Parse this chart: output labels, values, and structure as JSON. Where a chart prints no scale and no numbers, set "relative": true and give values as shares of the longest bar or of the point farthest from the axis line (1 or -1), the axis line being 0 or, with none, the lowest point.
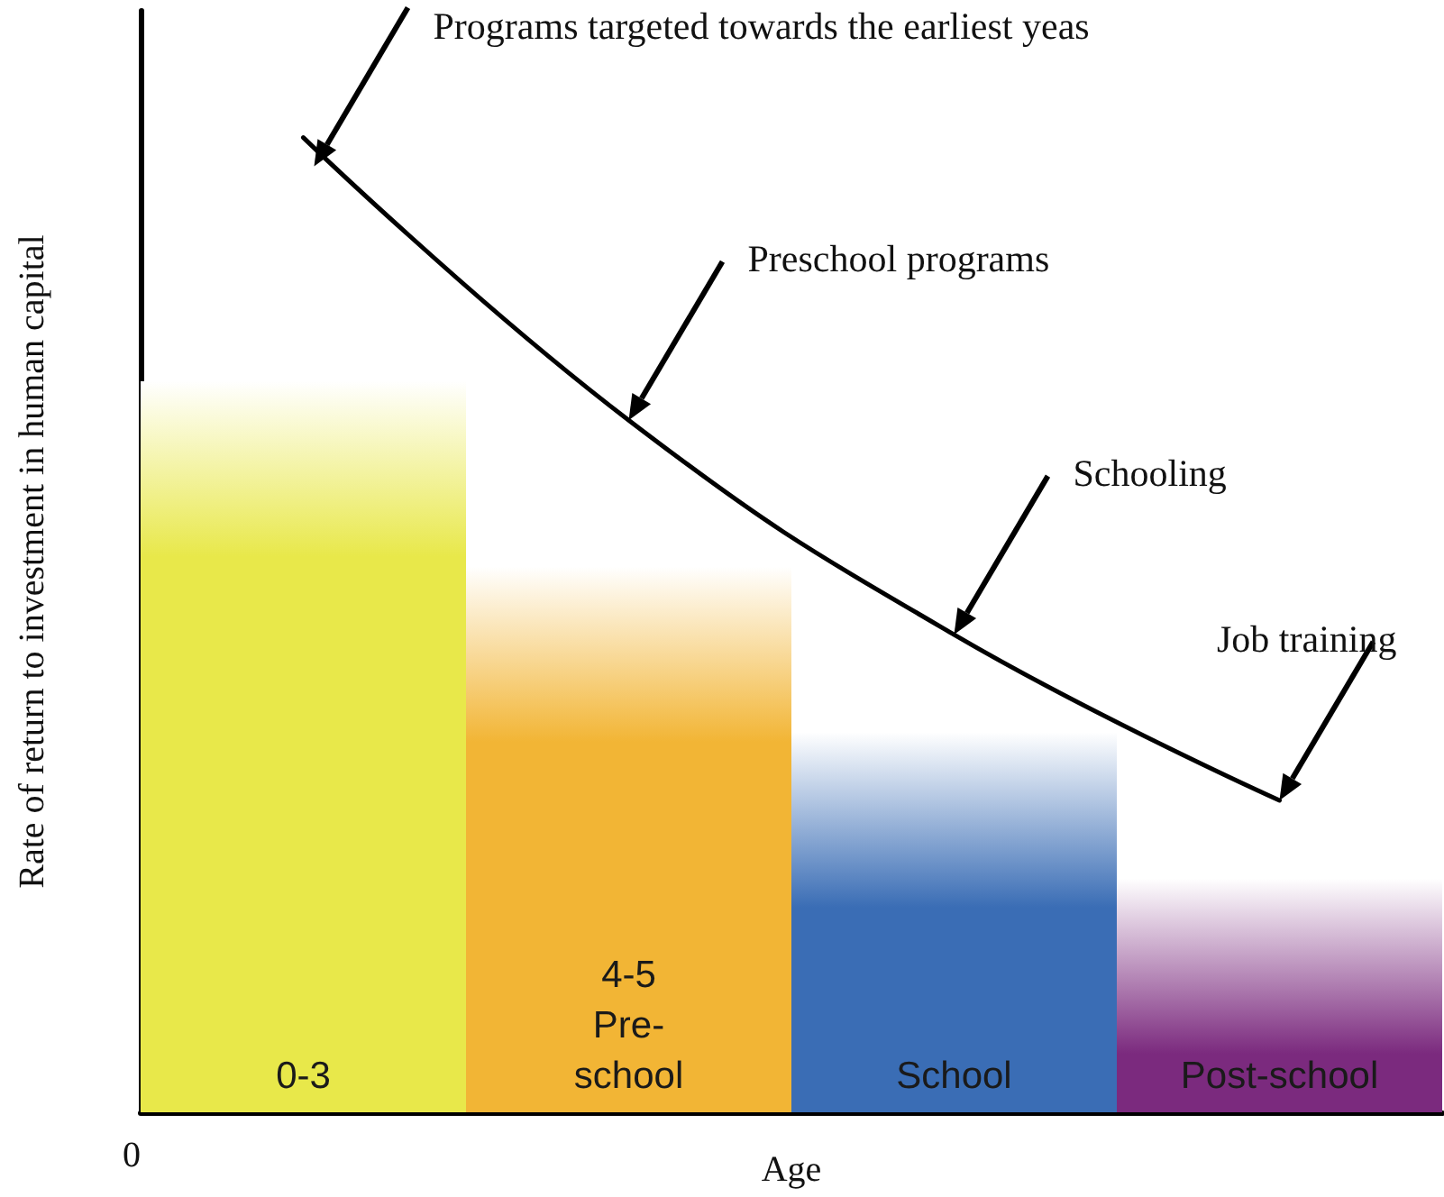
{
  "chart_data": {
    "type": "bar",
    "relative": true,
    "xlabel": "Age",
    "ylabel": "Rate of return to investment in human capital",
    "categories": [
      "0-3",
      "4-5\nPre-\nschool",
      "School",
      "Post-school"
    ],
    "tick_labels": false,
    "marker": "none",
    "series": [
      {
        "values": [
          0.75,
          0.56,
          0.39,
          0.24
        ],
        "colors": [
          "#e8e84a",
          "#f2b535",
          "#3a6db5",
          "#7b2a7e"
        ]
      },
      {
        "type": "line",
        "color": "#000000",
        "values": [
          1,
          0.71,
          0.49,
          0.32
        ]
      }
    ],
    "annotations": [
      "Programs targeted towards the earliest yeas",
      "Preschool programs",
      "Schooling",
      "Job training",
      "0"
    ]
  }
}
